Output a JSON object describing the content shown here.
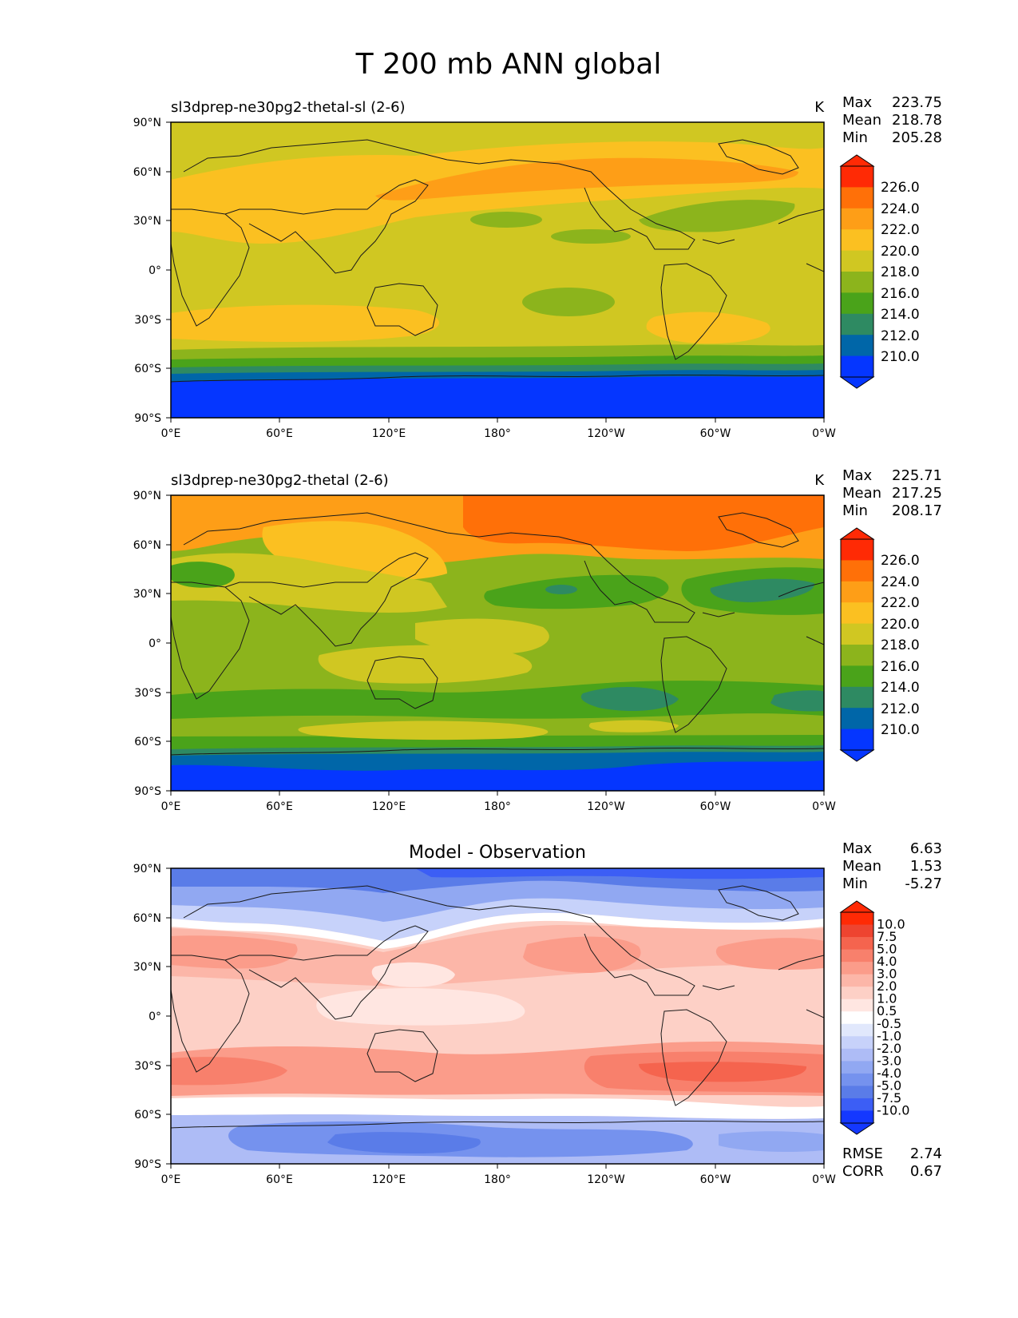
{
  "title": "T 200 mb ANN global",
  "panels": [
    {
      "id": "test",
      "label_left": "sl3dprep-ne30pg2-thetal-sl (2-6)",
      "label_center": "",
      "units": "K",
      "stats": [
        {
          "name": "Max",
          "value": "223.75"
        },
        {
          "name": "Mean",
          "value": "218.78"
        },
        {
          "name": "Min",
          "value": "205.28"
        }
      ],
      "colorbar_ticks": [
        "226.0",
        "224.0",
        "222.0",
        "220.0",
        "218.0",
        "216.0",
        "214.0",
        "212.0",
        "210.0"
      ]
    },
    {
      "id": "ref",
      "label_left": "sl3dprep-ne30pg2-thetal (2-6)",
      "label_center": "",
      "units": "K",
      "stats": [
        {
          "name": "Max",
          "value": "225.71"
        },
        {
          "name": "Mean",
          "value": "217.25"
        },
        {
          "name": "Min",
          "value": "208.17"
        }
      ],
      "colorbar_ticks": [
        "226.0",
        "224.0",
        "222.0",
        "220.0",
        "218.0",
        "216.0",
        "214.0",
        "212.0",
        "210.0"
      ]
    },
    {
      "id": "diff",
      "label_left": "",
      "label_center": "Model - Observation",
      "units": "",
      "stats": [
        {
          "name": "Max",
          "value": "6.63"
        },
        {
          "name": "Mean",
          "value": "1.53"
        },
        {
          "name": "Min",
          "value": "-5.27"
        }
      ],
      "colorbar_ticks": [
        "10.0",
        "7.5",
        "5.0",
        "4.0",
        "3.0",
        "2.0",
        "1.0",
        "0.5",
        "-0.5",
        "-1.0",
        "-2.0",
        "-3.0",
        "-4.0",
        "-5.0",
        "-7.5",
        "-10.0"
      ],
      "extra_stats": [
        {
          "name": "RMSE",
          "value": "2.74"
        },
        {
          "name": "CORR",
          "value": "0.67"
        }
      ]
    }
  ],
  "lon_ticks": [
    "0°E",
    "60°E",
    "120°E",
    "180°",
    "120°W",
    "60°W",
    "0°W"
  ],
  "lat_ticks": [
    "90°N",
    "60°N",
    "30°N",
    "0°",
    "30°S",
    "60°S",
    "90°S"
  ],
  "colors": {
    "temp_levels": [
      "#0536ff",
      "#0066a8",
      "#2e8a62",
      "#4aa31a",
      "#8cb41c",
      "#d0c722",
      "#fbc021",
      "#fe9e17",
      "#ff7008",
      "#ff2a05"
    ],
    "diff_levels": [
      "#1438ff",
      "#3c5ef5",
      "#5a7ce8",
      "#7592ee",
      "#91a8f2",
      "#aebcf6",
      "#c7d2fa",
      "#e1e8fc",
      "#ffffff",
      "#ffe6e1",
      "#fdd0c6",
      "#fcb6a8",
      "#fb9c8a",
      "#f8806c",
      "#f5644e",
      "#ee4430",
      "#ff2a05"
    ]
  }
}
